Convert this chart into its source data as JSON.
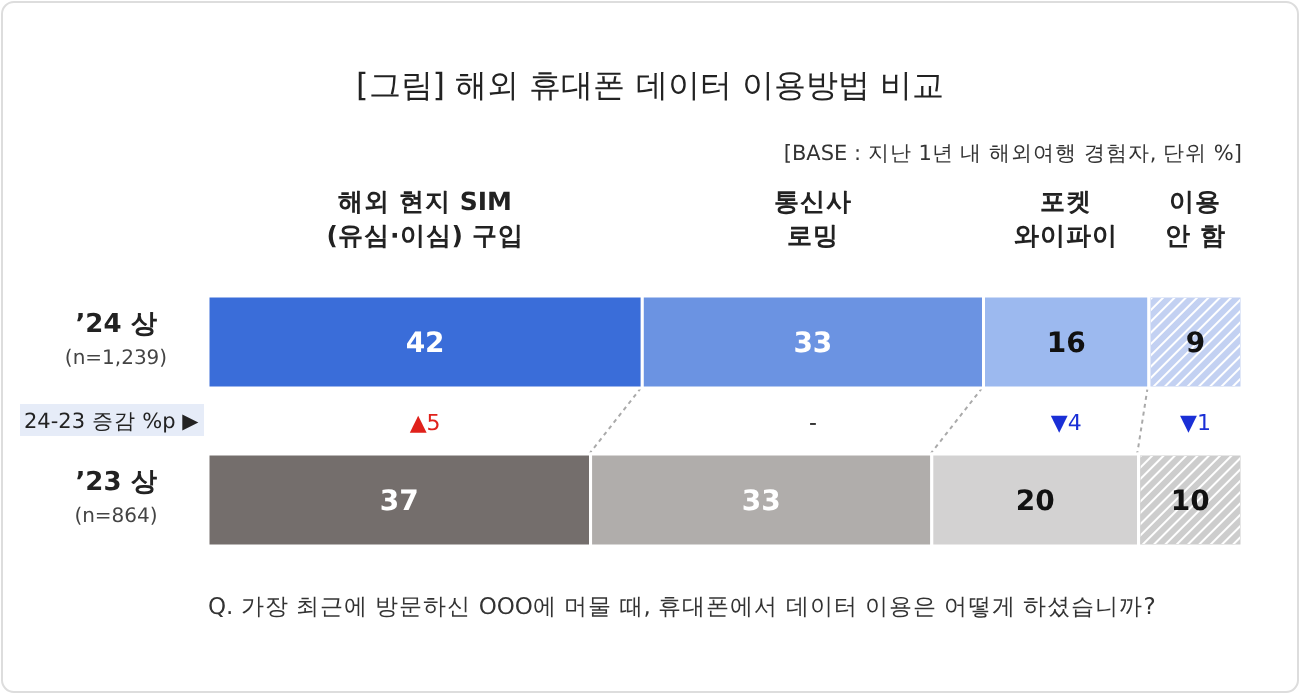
{
  "chart_data": {
    "type": "bar",
    "orientation": "horizontal",
    "stacked": true,
    "data_labels": true,
    "title": "[그림] 해외 휴대폰 데이터 이용방법 비교",
    "subtitle": "[BASE : 지난 1년 내 해외여행 경험자, 단위 %]",
    "categories": [
      "’24 상\n(n=1,239)",
      "’23 상\n(n=864)"
    ],
    "series": [
      {
        "name": "해외 현지 SIM\n(유심·이심) 구입",
        "colors": [
          "#3a6dd9",
          "#746e6c"
        ],
        "values": [
          42,
          37
        ]
      },
      {
        "name": "통신사\n로밍",
        "colors": [
          "#6b93e2",
          "#b0adab"
        ],
        "values": [
          33,
          33
        ]
      },
      {
        "name": "포켓\n와이파이",
        "colors": [
          "#9cb9ef",
          "#d3d2d2"
        ],
        "values": [
          16,
          20
        ]
      },
      {
        "name": "이용\n안 함",
        "colors": [
          "#c3d1f2",
          "#cdcdcd"
        ],
        "values": [
          9,
          10
        ]
      }
    ],
    "annotations": [
      "24-23 증감 %p ▶",
      "▲5",
      "-",
      "▼4",
      "▼1",
      "Q. 가장 최근에 방문하신 OOO에 머물 때, 휴대폰에서 데이터 이용은 어떻게 하셨습니까?"
    ]
  }
}
